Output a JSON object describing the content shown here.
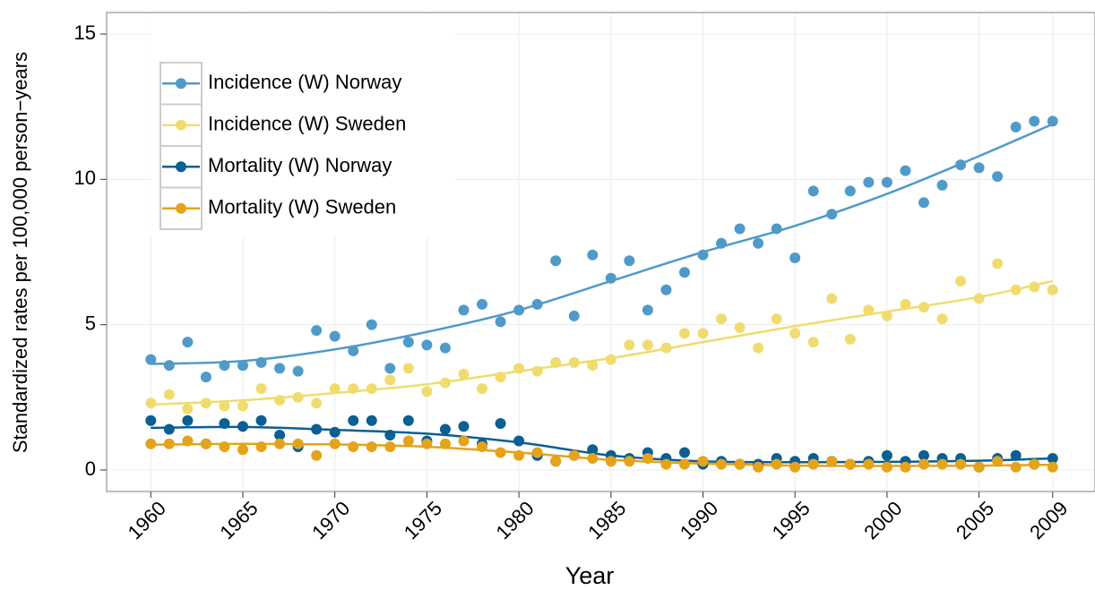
{
  "chart_data": {
    "type": "scatter",
    "x_label": "Year",
    "y_label": "Standardized rates per 100,000 person−years",
    "x": [
      1960,
      1961,
      1962,
      1963,
      1964,
      1965,
      1966,
      1967,
      1968,
      1969,
      1970,
      1971,
      1972,
      1973,
      1974,
      1975,
      1976,
      1977,
      1978,
      1979,
      1980,
      1981,
      1982,
      1983,
      1984,
      1985,
      1986,
      1987,
      1988,
      1989,
      1990,
      1991,
      1992,
      1993,
      1994,
      1995,
      1996,
      1997,
      1998,
      1999,
      2000,
      2001,
      2002,
      2003,
      2004,
      2005,
      2006,
      2007,
      2008,
      2009
    ],
    "trend_x": [
      1960,
      1965,
      1970,
      1975,
      1980,
      1985,
      1990,
      1995,
      2000,
      2005,
      2009
    ],
    "series": [
      {
        "name": "Incidence (W) Norway",
        "color": "#4f9ac9",
        "values": [
          3.8,
          3.6,
          4.4,
          3.2,
          3.6,
          3.6,
          3.7,
          3.5,
          3.4,
          4.8,
          4.6,
          4.1,
          5.0,
          3.5,
          4.4,
          4.3,
          4.2,
          5.5,
          5.7,
          5.1,
          5.5,
          5.7,
          7.2,
          5.3,
          7.4,
          6.6,
          7.2,
          5.5,
          6.2,
          6.8,
          7.4,
          7.8,
          8.3,
          7.8,
          8.3,
          7.3,
          9.6,
          8.8,
          9.6,
          9.9,
          9.9,
          10.3,
          9.2,
          9.8,
          10.5,
          10.4,
          10.1,
          11.8,
          12.0,
          12.0
        ],
        "trend": [
          3.65,
          3.75,
          4.15,
          4.75,
          5.5,
          6.5,
          7.5,
          8.4,
          9.5,
          10.8,
          11.9
        ]
      },
      {
        "name": "Incidence (W) Sweden",
        "color": "#f0dc6e",
        "values": [
          2.3,
          2.6,
          2.1,
          2.3,
          2.2,
          2.2,
          2.8,
          2.4,
          2.5,
          2.3,
          2.8,
          2.8,
          2.8,
          3.1,
          3.5,
          2.7,
          3.0,
          3.3,
          2.8,
          3.2,
          3.5,
          3.4,
          3.7,
          3.7,
          3.6,
          3.8,
          4.3,
          4.3,
          4.2,
          4.7,
          4.7,
          5.2,
          4.9,
          4.2,
          5.2,
          4.7,
          4.4,
          5.9,
          4.5,
          5.5,
          5.3,
          5.7,
          5.6,
          5.2,
          6.5,
          5.9,
          7.1,
          6.2,
          6.3,
          6.2
        ],
        "trend": [
          2.25,
          2.4,
          2.65,
          2.95,
          3.4,
          3.85,
          4.4,
          4.95,
          5.45,
          5.95,
          6.5
        ]
      },
      {
        "name": "Mortality (W) Norway",
        "color": "#0a5f93",
        "values": [
          1.7,
          1.4,
          1.7,
          0.9,
          1.6,
          1.5,
          1.7,
          1.2,
          0.8,
          1.4,
          1.3,
          1.7,
          1.7,
          1.2,
          1.7,
          1.0,
          1.4,
          1.5,
          0.9,
          1.6,
          1.0,
          0.5,
          0.3,
          0.5,
          0.7,
          0.5,
          0.4,
          0.6,
          0.4,
          0.6,
          0.2,
          0.3,
          0.2,
          0.2,
          0.4,
          0.3,
          0.4,
          0.3,
          0.2,
          0.3,
          0.5,
          0.3,
          0.5,
          0.4,
          0.4,
          0.1,
          0.4,
          0.5,
          0.2,
          0.4
        ],
        "trend": [
          1.45,
          1.48,
          1.38,
          1.25,
          0.95,
          0.5,
          0.3,
          0.27,
          0.28,
          0.32,
          0.4
        ]
      },
      {
        "name": "Mortality (W) Sweden",
        "color": "#e5a31a",
        "values": [
          0.9,
          0.9,
          1.0,
          0.9,
          0.8,
          0.7,
          0.8,
          0.9,
          0.9,
          0.5,
          0.9,
          0.8,
          0.8,
          0.8,
          1.0,
          0.9,
          0.9,
          1.0,
          0.8,
          0.6,
          0.5,
          0.6,
          0.3,
          0.5,
          0.4,
          0.3,
          0.3,
          0.4,
          0.2,
          0.2,
          0.3,
          0.2,
          0.2,
          0.1,
          0.2,
          0.1,
          0.2,
          0.3,
          0.2,
          0.2,
          0.1,
          0.1,
          0.2,
          0.2,
          0.2,
          0.1,
          0.3,
          0.1,
          0.2,
          0.1
        ],
        "trend": [
          0.87,
          0.9,
          0.88,
          0.8,
          0.6,
          0.35,
          0.22,
          0.15,
          0.14,
          0.15,
          0.18
        ]
      }
    ],
    "xlim": [
      1957.6,
      2011.3
    ],
    "ylim": [
      -0.74,
      15.74
    ],
    "xticks": [
      1960,
      1965,
      1970,
      1975,
      1980,
      1985,
      1990,
      1995,
      2000,
      2005,
      2009
    ],
    "yticks": [
      0,
      5,
      10,
      15
    ],
    "grid": true,
    "legend": "top-left"
  }
}
